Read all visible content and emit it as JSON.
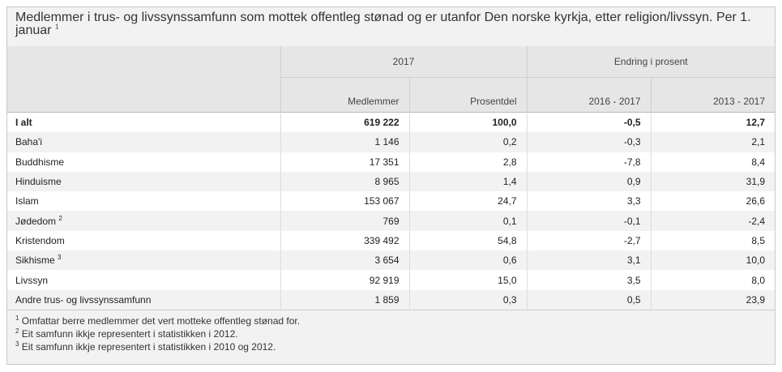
{
  "title": "Medlemmer i trus- og livssynssamfunn som mottek offentleg stønad og er utanfor Den norske kyrkja, etter religion/livssyn. Per 1. januar",
  "title_note": "1",
  "table": {
    "header_groups": [
      "2017",
      "Endring i prosent"
    ],
    "columns": [
      "Medlemmer",
      "Prosentdel",
      "2016 - 2017",
      "2013 - 2017"
    ],
    "rows": [
      {
        "label": "I alt",
        "cells": [
          "619 222",
          "100,0",
          "-0,5",
          "12,7"
        ]
      },
      {
        "label": "Baha'i",
        "cells": [
          "1 146",
          "0,2",
          "-0,3",
          "2,1"
        ]
      },
      {
        "label": "Buddhisme",
        "cells": [
          "17 351",
          "2,8",
          "-7,8",
          "8,4"
        ]
      },
      {
        "label": "Hinduisme",
        "cells": [
          "8 965",
          "1,4",
          "0,9",
          "31,9"
        ]
      },
      {
        "label": "Islam",
        "cells": [
          "153 067",
          "24,7",
          "3,3",
          "26,6"
        ]
      },
      {
        "label": "Jødedom",
        "note": "2",
        "cells": [
          "769",
          "0,1",
          "-0,1",
          "-2,4"
        ]
      },
      {
        "label": "Kristendom",
        "cells": [
          "339 492",
          "54,8",
          "-2,7",
          "8,5"
        ]
      },
      {
        "label": "Sikhisme",
        "note": "3",
        "cells": [
          "3 654",
          "0,6",
          "3,1",
          "10,0"
        ]
      },
      {
        "label": "Livssyn",
        "cells": [
          "92 919",
          "15,0",
          "3,5",
          "8,0"
        ]
      },
      {
        "label": "Andre trus- og livssynssamfunn",
        "cells": [
          "1 859",
          "0,3",
          "0,5",
          "23,9"
        ]
      }
    ]
  },
  "footnotes": [
    {
      "mark": "1",
      "text": "Omfattar berre medlemmer det vert motteke offentleg stønad for."
    },
    {
      "mark": "2",
      "text": "Eit samfunn ikkje representert i statistikken i 2012."
    },
    {
      "mark": "3",
      "text": "Eit samfunn ikkje representert i statistikken i 2010 og 2012."
    }
  ]
}
